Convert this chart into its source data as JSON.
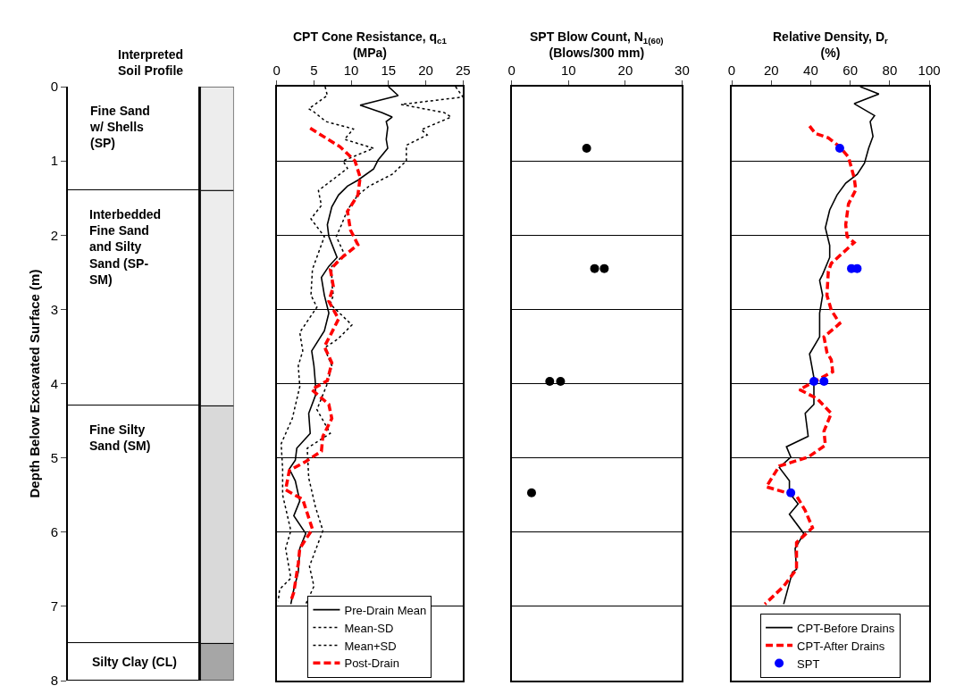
{
  "chart_data": [
    {
      "type": "bar",
      "stacked": true,
      "title": "Interpreted Soil Profile",
      "ylabel": "Depth Below Excavated Surface (m)",
      "categories": [
        null
      ],
      "ylim": [
        8,
        0
      ],
      "yticks": [
        0,
        1,
        2,
        3,
        4,
        5,
        6,
        7,
        8
      ],
      "tick_labels": "y",
      "series": [
        {
          "name": "Fine Sand w/ Shells (SP)",
          "color": "#ffffff",
          "values": [
            1.4
          ]
        },
        {
          "name": "Interbedded Fine Sand and Silty Sand (SP-SM)",
          "color": "#ffffff",
          "values": [
            2.9
          ]
        },
        {
          "name": "Fine Silty Sand (SM)",
          "color": "#ffffff",
          "values": [
            3.2
          ]
        },
        {
          "name": "Silty Clay (CL)",
          "color": "#ffffff",
          "values": [
            0.5
          ]
        }
      ]
    },
    {
      "type": "line",
      "title": "CPT Cone Resistance, q$_{c1}$",
      "subtitle": "(MPa)",
      "xlim": [
        0,
        25
      ],
      "xticks": [
        0,
        5,
        10,
        15,
        20,
        25
      ],
      "ylim": [
        8,
        0
      ],
      "yticks": [
        0,
        1,
        2,
        3,
        4,
        5,
        6,
        7,
        8
      ],
      "tick_labels": "x",
      "grid": "y",
      "legend": "bottom",
      "marker": "none",
      "series": [
        {
          "name": "Pre-Drain Mean",
          "color": "#000000",
          "line_style": "solid",
          "x": [
            15,
            16.3,
            11.2,
            14.1,
            15.5,
            14.7,
            14.9,
            14.7,
            14.9,
            13.6,
            13.0,
            10.9,
            9.5,
            8.3,
            7.4,
            6.8,
            7.0,
            8.1,
            7.0,
            6.0,
            6.4,
            7.0,
            6.4,
            4.7,
            5.0,
            5.2,
            5.2,
            4.3,
            4.5,
            2.7,
            2.5,
            1.7,
            2.5,
            3.1,
            2.3,
            3.9,
            3.1,
            2.9,
            2.3,
            1.9
          ],
          "values": [
            0,
            0.12,
            0.25,
            0.35,
            0.41,
            0.47,
            0.55,
            0.71,
            0.83,
            0.99,
            1.11,
            1.26,
            1.34,
            1.46,
            1.62,
            1.86,
            2.02,
            2.3,
            2.42,
            2.57,
            2.81,
            3.05,
            3.29,
            3.56,
            3.76,
            4.0,
            4.16,
            4.4,
            4.67,
            4.87,
            5.03,
            5.15,
            5.31,
            5.58,
            5.78,
            6.02,
            6.22,
            6.54,
            6.77,
            6.97
          ]
        },
        {
          "name": "Mean-SD",
          "color": "#000000",
          "line_style": "dotted",
          "x": [
            6.5,
            6.8,
            4.3,
            5.0,
            6.6,
            10.3,
            9.1,
            13.0,
            8.9,
            9.5,
            5.6,
            6.0,
            4.6,
            6.4,
            4.8,
            4.6,
            5.4,
            3.1,
            3.5,
            2.9,
            3.1,
            2.1,
            0.6,
            0.8,
            0.8,
            1.9,
            1.2,
            1.9,
            0.4,
            0.2
          ],
          "values": [
            0,
            0.12,
            0.3,
            0.34,
            0.47,
            0.57,
            0.71,
            0.83,
            1.0,
            1.1,
            1.4,
            1.6,
            1.78,
            2.02,
            2.46,
            2.81,
            2.97,
            3.31,
            3.56,
            3.76,
            4.04,
            4.47,
            4.81,
            5.15,
            5.5,
            5.98,
            6.22,
            6.62,
            6.77,
            6.93
          ]
        },
        {
          "name": "Mean+SD",
          "color": "#000000",
          "line_style": "dotted",
          "x": [
            24,
            25,
            16.7,
            22.5,
            23.4,
            19.4,
            20.2,
            17.4,
            17.4,
            15.5,
            12.4,
            10.9,
            9.5,
            8.7,
            8.0,
            9.1,
            7.4,
            7.4,
            7.6,
            7.2,
            10.1,
            8.2,
            6.4,
            7.4,
            6.8,
            5.4,
            7.2,
            4.1,
            4.3,
            5.2,
            6.2,
            4.4,
            5.0,
            3.9
          ],
          "values": [
            0,
            0.14,
            0.24,
            0.35,
            0.41,
            0.58,
            0.65,
            0.79,
            1.0,
            1.18,
            1.34,
            1.46,
            1.66,
            1.86,
            2.02,
            2.26,
            2.42,
            2.65,
            2.81,
            2.93,
            3.21,
            3.4,
            3.52,
            3.76,
            4.0,
            4.35,
            4.67,
            4.87,
            5.27,
            5.66,
            5.98,
            6.46,
            6.73,
            6.97
          ]
        },
        {
          "name": "Post-Drain",
          "color": "#ff0000",
          "line_style": "dashed",
          "x": [
            4.5,
            8.5,
            10.5,
            11.2,
            10.9,
            9.5,
            9.9,
            10.9,
            8.9,
            7.2,
            7.6,
            7.0,
            8.3,
            7.4,
            6.4,
            7.4,
            6.8,
            4.7,
            7.0,
            7.4,
            6.2,
            6.0,
            3.9,
            1.7,
            1.2,
            3.5,
            4.8,
            3.1,
            2.9,
            2.3,
            1.9
          ],
          "values": [
            0.56,
            0.81,
            1.0,
            1.22,
            1.46,
            1.68,
            1.93,
            2.13,
            2.29,
            2.46,
            2.69,
            2.89,
            3.13,
            3.31,
            3.5,
            3.72,
            3.96,
            4.08,
            4.28,
            4.47,
            4.71,
            4.91,
            5.05,
            5.17,
            5.43,
            5.56,
            5.96,
            6.22,
            6.42,
            6.81,
            6.93
          ]
        }
      ]
    },
    {
      "type": "scatter",
      "title": "SPT Blow Count, N$_{1(60)}$",
      "subtitle": "(Blows/300 mm)",
      "xlim": [
        0,
        30
      ],
      "xticks": [
        0,
        10,
        20,
        30
      ],
      "ylim": [
        8,
        0
      ],
      "yticks": [
        0,
        1,
        2,
        3,
        4,
        5,
        6,
        7,
        8
      ],
      "tick_labels": "x",
      "grid": "y",
      "marker": "circle",
      "color": "#000000",
      "x": [
        13.2,
        14.6,
        16.3,
        6.7,
        8.6,
        3.5
      ],
      "values": [
        0.83,
        2.45,
        2.45,
        3.97,
        3.97,
        5.47
      ]
    },
    {
      "type": "line",
      "title": "Relative Density, D$_{r}$",
      "subtitle": "(%)",
      "xlim": [
        0,
        100
      ],
      "xticks": [
        0,
        20,
        40,
        60,
        80,
        100
      ],
      "ylim": [
        8,
        0
      ],
      "yticks": [
        0,
        1,
        2,
        3,
        4,
        5,
        6,
        7,
        8
      ],
      "tick_labels": "x",
      "grid": "y",
      "legend": "bottom",
      "marker": "none",
      "series": [
        {
          "name": "CPT-Before Drains",
          "color": "#000000",
          "line_style": "solid",
          "x": [
            65,
            74.5,
            62,
            72.3,
            70.1,
            71.5,
            69.3,
            67.2,
            63.5,
            57.7,
            53.3,
            49.6,
            47.4,
            49.6,
            49.6,
            46,
            44.5,
            46,
            44.5,
            44.5,
            39.4,
            41.6,
            41.6,
            37.2,
            38.7,
            27.7,
            29.9,
            24.1,
            29.2,
            29.2,
            33.6,
            29.2,
            36.5,
            32.1,
            32.8,
            30.7,
            26.3
          ],
          "values": [
            0,
            0.1,
            0.23,
            0.39,
            0.47,
            0.67,
            0.83,
            1.03,
            1.18,
            1.3,
            1.46,
            1.66,
            1.9,
            2.14,
            2.3,
            2.53,
            2.61,
            2.81,
            3.05,
            3.37,
            3.6,
            3.92,
            4.28,
            4.4,
            4.71,
            4.85,
            4.99,
            5.13,
            5.31,
            5.47,
            5.62,
            5.76,
            6.02,
            6.22,
            6.5,
            6.54,
            6.97
          ]
        },
        {
          "name": "CPT-After Drains",
          "color": "#ff0000",
          "line_style": "dashed",
          "x": [
            39.4,
            42.3,
            48.9,
            54.7,
            59.1,
            62,
            62.8,
            59.1,
            57.7,
            58.4,
            62,
            50.4,
            48.9,
            48.2,
            50.4,
            54.7,
            46.7,
            48.2,
            50.4,
            51.1,
            34.3,
            43.1,
            50.4,
            46.7,
            47.4,
            38.7,
            24.1,
            17.5,
            32.8,
            37.2,
            40.9,
            32.8,
            32.8,
            26.3,
            16.8
          ],
          "values": [
            0.53,
            0.63,
            0.69,
            0.81,
            0.95,
            1.23,
            1.39,
            1.58,
            1.86,
            2.02,
            2.1,
            2.38,
            2.49,
            2.81,
            3.01,
            3.19,
            3.37,
            3.58,
            3.68,
            3.84,
            4.08,
            4.2,
            4.4,
            4.64,
            4.83,
            4.99,
            5.11,
            5.39,
            5.51,
            5.71,
            5.94,
            6.14,
            6.5,
            6.73,
            6.97
          ]
        },
        {
          "name": "SPT",
          "type": "scatter",
          "marker": "circle",
          "color": "#0000ff",
          "x": [
            54.7,
            60.6,
            63.5,
            41.6,
            46.7,
            29.9
          ],
          "values": [
            0.83,
            2.45,
            2.45,
            3.97,
            3.97,
            5.47
          ]
        }
      ]
    }
  ]
}
